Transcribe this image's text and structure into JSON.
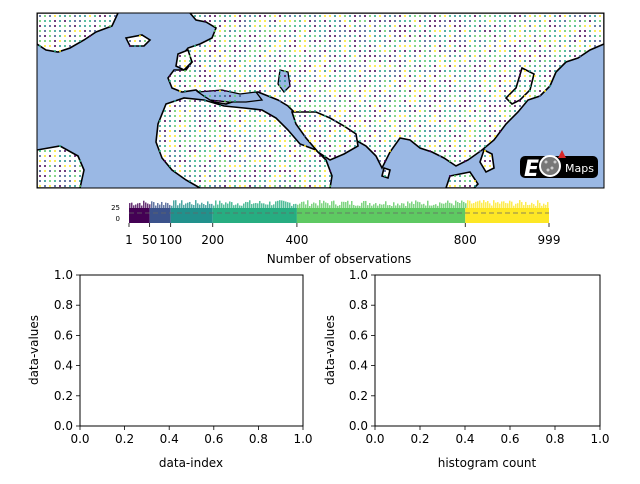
{
  "figure": {
    "map_badge": "Maps",
    "colorbar": {
      "label": "Number of observations",
      "ticks": [
        "1",
        "50",
        "100",
        "200",
        "400",
        "800",
        "999"
      ],
      "hist_ticks": [
        "25",
        "0"
      ],
      "bins": [
        {
          "from": 1,
          "to": 50,
          "color": "#440154"
        },
        {
          "from": 50,
          "to": 100,
          "color": "#3b528b"
        },
        {
          "from": 100,
          "to": 200,
          "color": "#21918c"
        },
        {
          "from": 200,
          "to": 400,
          "color": "#27ad81"
        },
        {
          "from": 400,
          "to": 800,
          "color": "#5ec962"
        },
        {
          "from": 800,
          "to": 999,
          "color": "#fde725"
        }
      ]
    },
    "ocean_color": "#9ab8e4",
    "land_color": "#ffffff"
  },
  "chart_data": [
    {
      "type": "scatter",
      "title": "",
      "xlabel": "data-index",
      "ylabel": "data-values",
      "xlim": [
        0,
        1
      ],
      "ylim": [
        0,
        1
      ],
      "xticks": [
        "0.0",
        "0.2",
        "0.4",
        "0.6",
        "0.8",
        "1.0"
      ],
      "yticks": [
        "0.0",
        "0.2",
        "0.4",
        "0.6",
        "0.8",
        "1.0"
      ],
      "series": []
    },
    {
      "type": "bar",
      "title": "",
      "xlabel": "histogram count",
      "ylabel": "data-values",
      "xlim": [
        0,
        1
      ],
      "ylim": [
        0,
        1
      ],
      "xticks": [
        "0.0",
        "0.2",
        "0.4",
        "0.6",
        "0.8",
        "1.0"
      ],
      "yticks": [
        "0.0",
        "0.2",
        "0.4",
        "0.6",
        "0.8",
        "1.0"
      ],
      "series": []
    }
  ]
}
